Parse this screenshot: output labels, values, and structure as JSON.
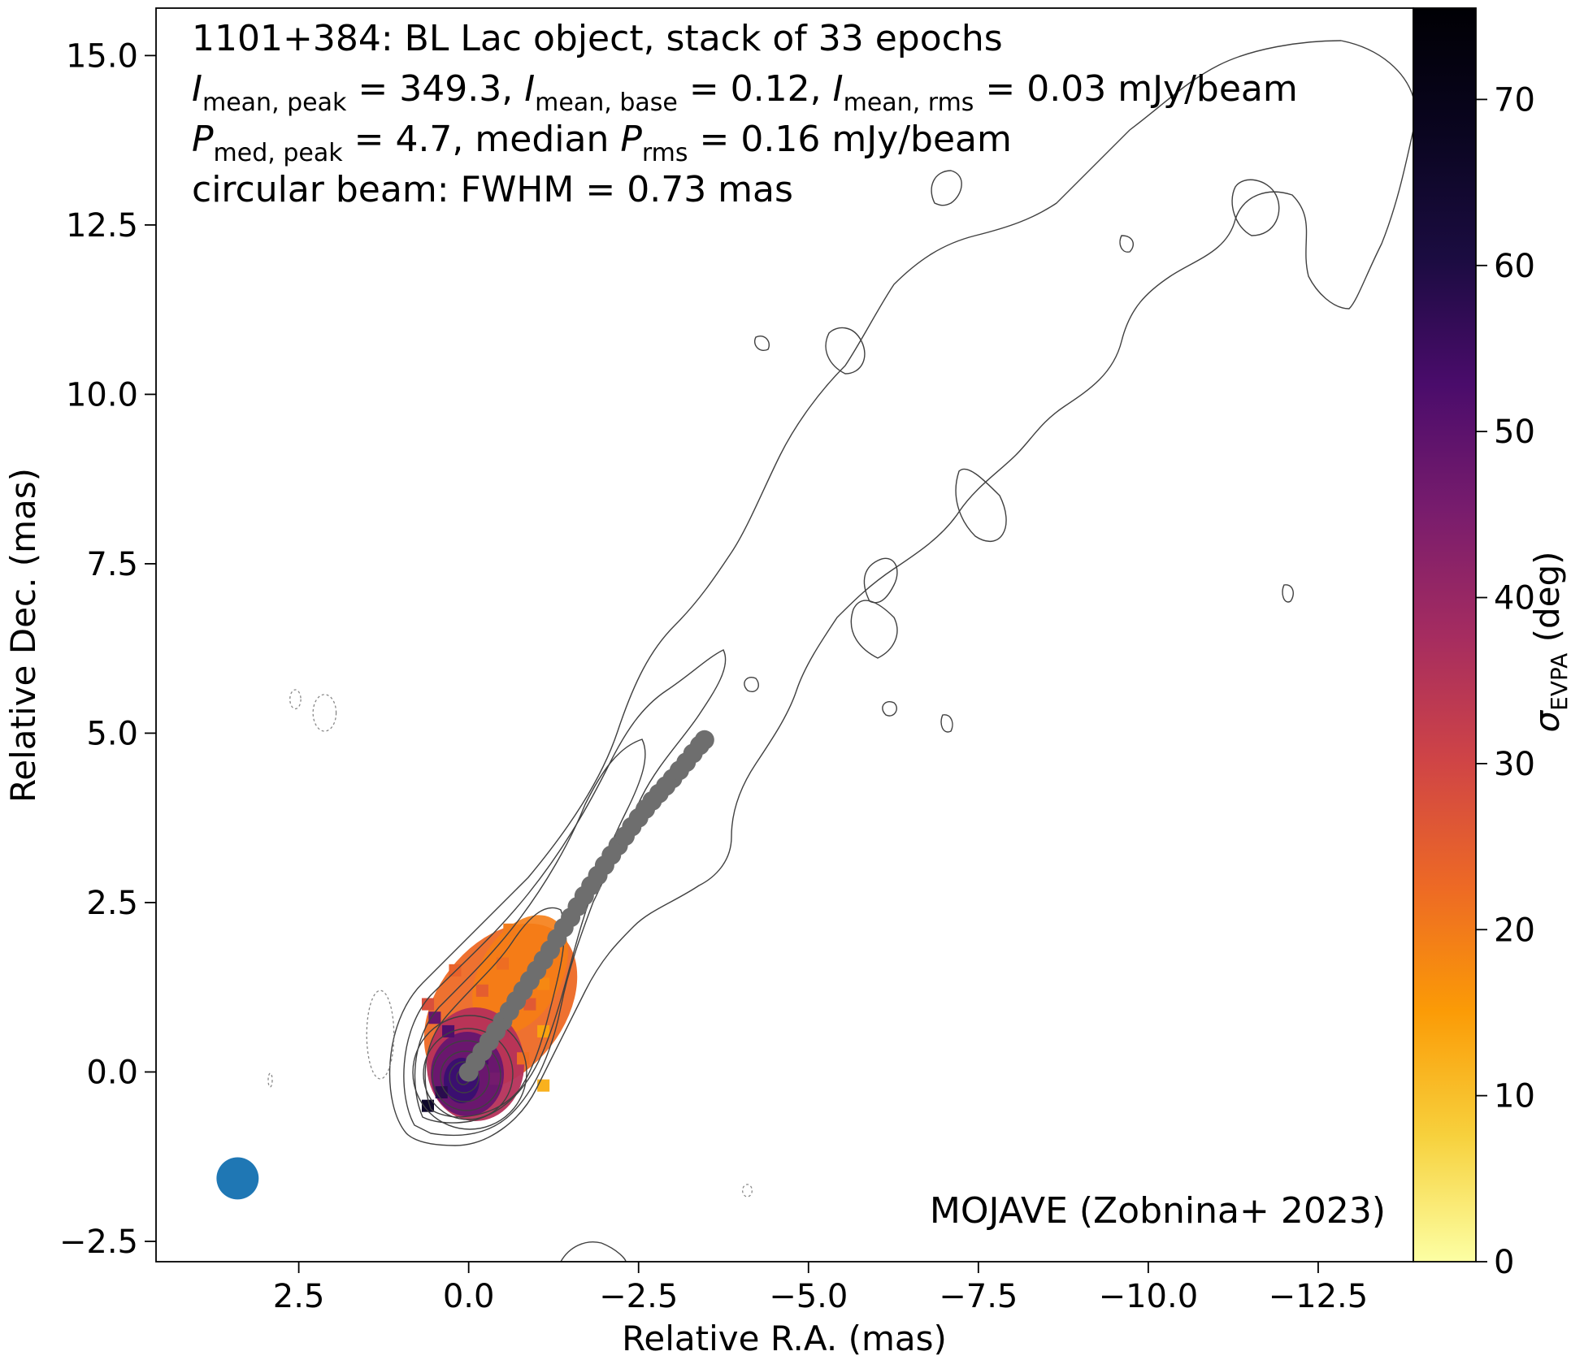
{
  "chart_data": {
    "type": "heatmap",
    "annotation_lines": [
      {
        "segments": [
          {
            "t": "1101+384: BL Lac object, stack of 33 epochs"
          }
        ]
      },
      {
        "segments": [
          {
            "t": "I",
            "italic": true
          },
          {
            "t": "mean, peak",
            "sub": true
          },
          {
            "t": " = 349.3, "
          },
          {
            "t": "I",
            "italic": true
          },
          {
            "t": "mean, base",
            "sub": true
          },
          {
            "t": " = 0.12, "
          },
          {
            "t": "I",
            "italic": true
          },
          {
            "t": "mean, rms",
            "sub": true
          },
          {
            "t": " = 0.03 mJy/beam"
          }
        ]
      },
      {
        "segments": [
          {
            "t": "P",
            "italic": true
          },
          {
            "t": "med, peak",
            "sub": true
          },
          {
            "t": " = 4.7, median "
          },
          {
            "t": "P",
            "italic": true
          },
          {
            "t": "rms",
            "sub": true
          },
          {
            "t": " = 0.16 mJy/beam"
          }
        ]
      },
      {
        "segments": [
          {
            "t": "circular beam: FWHM = 0.73 mas"
          }
        ]
      }
    ],
    "credit": "MOJAVE (Zobnina+ 2023)",
    "xlabel": "Relative R.A. (mas)",
    "ylabel": "Relative Dec. (mas)",
    "colorbar_label": {
      "main": "σ",
      "sub": "EVPA",
      "rest": " (deg)"
    },
    "x_ticks": [
      "2.5",
      "0.0",
      "−2.5",
      "−5.0",
      "−7.5",
      "−10.0",
      "−12.5"
    ],
    "x_tick_values": [
      2.5,
      0,
      -2.5,
      -5,
      -7.5,
      -10,
      -12.5
    ],
    "y_ticks": [
      "−2.5",
      "0.0",
      "2.5",
      "5.0",
      "7.5",
      "10.0",
      "12.5",
      "15.0"
    ],
    "y_tick_values": [
      -2.5,
      0,
      2.5,
      5,
      7.5,
      10,
      12.5,
      15
    ],
    "colorbar_ticks": [
      "0",
      "10",
      "20",
      "30",
      "40",
      "50",
      "60",
      "70"
    ],
    "colorbar_tick_values": [
      0,
      10,
      20,
      30,
      40,
      50,
      60,
      70
    ],
    "xlim": [
      4.6,
      -13.9
    ],
    "ylim": [
      -2.8,
      15.7
    ],
    "clim": [
      0,
      75.5
    ],
    "colormap": "inferno_r",
    "beam": {
      "ra": 3.4,
      "dec": -1.57,
      "fwhm_mas": 0.73,
      "color": "#1f77b4"
    },
    "ridgeline": {
      "color": "#6e6e6e",
      "points": [
        [
          0.0,
          0.0
        ],
        [
          -0.1,
          0.15
        ],
        [
          -0.2,
          0.3
        ],
        [
          -0.3,
          0.45
        ],
        [
          -0.4,
          0.6
        ],
        [
          -0.5,
          0.75
        ],
        [
          -0.6,
          0.9
        ],
        [
          -0.7,
          1.05
        ],
        [
          -0.8,
          1.2
        ],
        [
          -0.9,
          1.35
        ],
        [
          -1.0,
          1.5
        ],
        [
          -1.1,
          1.65
        ],
        [
          -1.2,
          1.8
        ],
        [
          -1.3,
          1.97
        ],
        [
          -1.4,
          2.13
        ],
        [
          -1.5,
          2.28
        ],
        [
          -1.6,
          2.44
        ],
        [
          -1.7,
          2.6
        ],
        [
          -1.8,
          2.75
        ],
        [
          -1.9,
          2.9
        ],
        [
          -2.0,
          3.05
        ],
        [
          -2.1,
          3.2
        ],
        [
          -2.2,
          3.34
        ],
        [
          -2.3,
          3.48
        ],
        [
          -2.4,
          3.62
        ],
        [
          -2.5,
          3.75
        ],
        [
          -2.6,
          3.88
        ],
        [
          -2.7,
          4.0
        ],
        [
          -2.8,
          4.11
        ],
        [
          -2.9,
          4.22
        ],
        [
          -3.0,
          4.33
        ],
        [
          -3.1,
          4.45
        ],
        [
          -3.2,
          4.57
        ],
        [
          -3.3,
          4.7
        ],
        [
          -3.4,
          4.82
        ],
        [
          -3.47,
          4.9
        ]
      ]
    },
    "sigma_evpa_region": {
      "cells": [
        {
          "ra": 0.5,
          "dec": 0.8,
          "v": 48
        },
        {
          "ra": 0.3,
          "dec": 0.6,
          "v": 52
        },
        {
          "ra": 0.0,
          "dec": 0.0,
          "v": 55
        },
        {
          "ra": -0.2,
          "dec": 0.2,
          "v": 52
        },
        {
          "ra": 0.4,
          "dec": -0.3,
          "v": 58
        },
        {
          "ra": 0.6,
          "dec": -0.5,
          "v": 66
        },
        {
          "ra": -0.4,
          "dec": -0.1,
          "v": 46
        },
        {
          "ra": -0.5,
          "dec": 0.6,
          "v": 35
        },
        {
          "ra": -0.2,
          "dec": 1.2,
          "v": 25
        },
        {
          "ra": -0.5,
          "dec": 1.6,
          "v": 22
        },
        {
          "ra": 0.2,
          "dec": 1.5,
          "v": 24
        },
        {
          "ra": -0.9,
          "dec": 1.0,
          "v": 26
        },
        {
          "ra": -0.8,
          "dec": 0.2,
          "v": 22
        },
        {
          "ra": -1.1,
          "dec": 0.6,
          "v": 14
        },
        {
          "ra": -1.1,
          "dec": 1.3,
          "v": 18
        },
        {
          "ra": -0.6,
          "dec": 2.1,
          "v": 20
        },
        {
          "ra": 0.6,
          "dec": 1.0,
          "v": 28
        },
        {
          "ra": -1.1,
          "dec": -0.2,
          "v": 12
        }
      ]
    },
    "contours": {
      "dashed": [
        {
          "ra": 2.55,
          "dec": 5.5,
          "a": 0.08,
          "b": 0.14
        },
        {
          "ra": 2.12,
          "dec": 5.3,
          "a": 0.17,
          "b": 0.27
        },
        {
          "ra": 1.3,
          "dec": 0.55,
          "a": 0.2,
          "b": 0.65
        },
        {
          "ra": 2.92,
          "dec": -0.12,
          "a": 0.03,
          "b": 0.1
        },
        {
          "ra": -4.1,
          "dec": -1.75,
          "a": 0.07,
          "b": 0.09
        }
      ]
    }
  }
}
